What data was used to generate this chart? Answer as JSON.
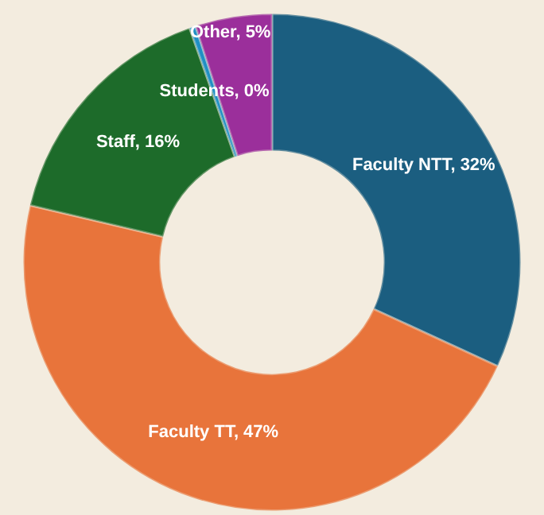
{
  "chart_data": {
    "type": "donut",
    "categories": [
      "Faculty NTT",
      "Faculty TT",
      "Staff",
      "Students",
      "Other"
    ],
    "values": [
      32,
      47,
      16,
      0.4,
      5
    ],
    "value_labels": [
      "32%",
      "47%",
      "16%",
      "0%",
      "5%"
    ],
    "colors": [
      "#1b5e80",
      "#e8743b",
      "#1d6b2a",
      "#1f8fc4",
      "#9b2f9b"
    ],
    "legend": false
  }
}
